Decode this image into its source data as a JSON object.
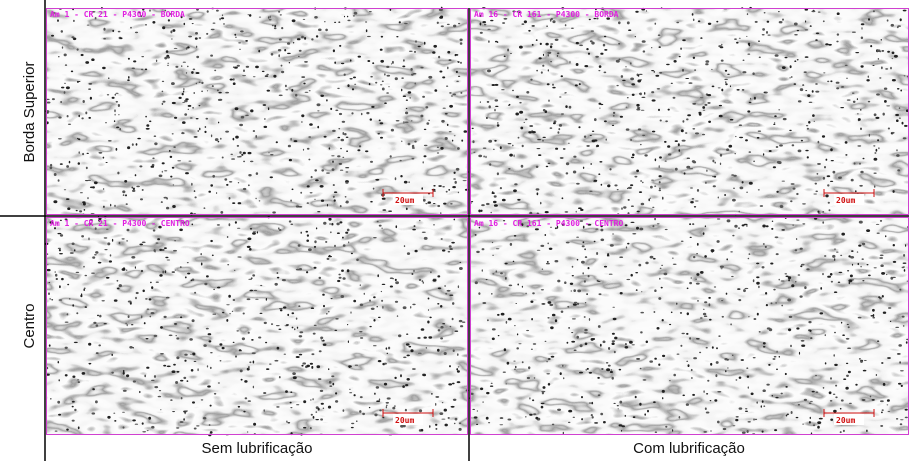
{
  "row_labels": [
    "Borda Superior",
    "Centro"
  ],
  "column_labels": [
    "Sem lubrificação",
    "Com lubrificação"
  ],
  "panels": [
    {
      "caption": "Am 1 - CR 21 - P4300 - BORDA",
      "scale_bar": "20um"
    },
    {
      "caption": "Am 16 - CR 161 - P4300 - BORDA",
      "scale_bar": "20um"
    },
    {
      "caption": "Am 1 - CR 21 - P4300 - CENTRO",
      "scale_bar": "20um"
    },
    {
      "caption": "Am 16 - CR 161 - P4300 - CENTRO",
      "scale_bar": "20um"
    }
  ]
}
